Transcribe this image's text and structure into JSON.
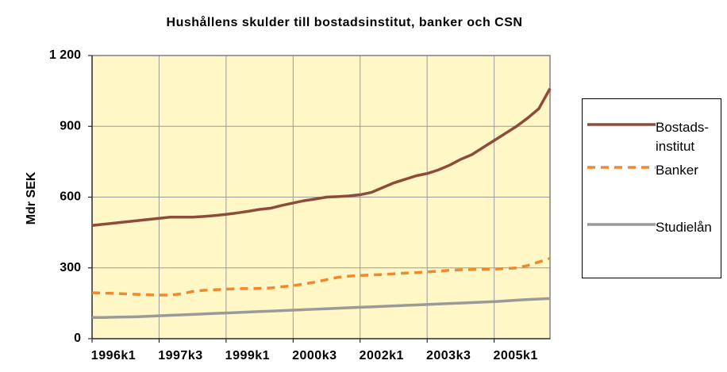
{
  "chart_data": {
    "type": "line",
    "title": "Hushållens skulder till bostadsinstitut, banker och CSN",
    "ylabel": "Mdr SEK",
    "categories": [
      "1996k1",
      null,
      null,
      null,
      null,
      null,
      "1997k3",
      null,
      null,
      null,
      null,
      null,
      "1999k1",
      null,
      null,
      null,
      null,
      null,
      "2000k3",
      null,
      null,
      null,
      null,
      null,
      "2002k1",
      null,
      null,
      null,
      null,
      null,
      "2003k3",
      null,
      null,
      null,
      null,
      null,
      "2005k1",
      null,
      null,
      null,
      null,
      null
    ],
    "series": [
      {
        "name": "Bostads-institut",
        "color": "#8e4b3a",
        "dash": false,
        "values": [
          480,
          485,
          490,
          495,
          500,
          505,
          510,
          515,
          515,
          515,
          518,
          522,
          527,
          533,
          540,
          548,
          553,
          565,
          575,
          585,
          592,
          600,
          602,
          605,
          610,
          620,
          640,
          660,
          675,
          690,
          700,
          715,
          735,
          760,
          780,
          810,
          840,
          870,
          900,
          935,
          975,
          1060
        ]
      },
      {
        "name": "Banker",
        "color": "#f0892c",
        "dash": true,
        "values": [
          195,
          193,
          192,
          190,
          188,
          186,
          185,
          185,
          190,
          200,
          205,
          207,
          210,
          212,
          212,
          213,
          215,
          220,
          225,
          232,
          240,
          250,
          260,
          265,
          268,
          270,
          272,
          275,
          278,
          280,
          283,
          286,
          290,
          292,
          293,
          294,
          295,
          297,
          300,
          310,
          325,
          340
        ]
      },
      {
        "name": "Studielån",
        "color": "#9a9a9a",
        "dash": false,
        "values": [
          90,
          90,
          91,
          92,
          93,
          95,
          97,
          99,
          101,
          103,
          105,
          107,
          109,
          111,
          113,
          115,
          117,
          119,
          121,
          123,
          125,
          127,
          129,
          131,
          133,
          135,
          137,
          139,
          141,
          143,
          145,
          147,
          149,
          151,
          153,
          155,
          157,
          160,
          163,
          166,
          168,
          170
        ]
      }
    ],
    "ylim": [
      0,
      1200
    ],
    "yticks": [
      0,
      300,
      600,
      900,
      {
        "value": 1200,
        "label": "1 200"
      }
    ],
    "grid": true
  }
}
